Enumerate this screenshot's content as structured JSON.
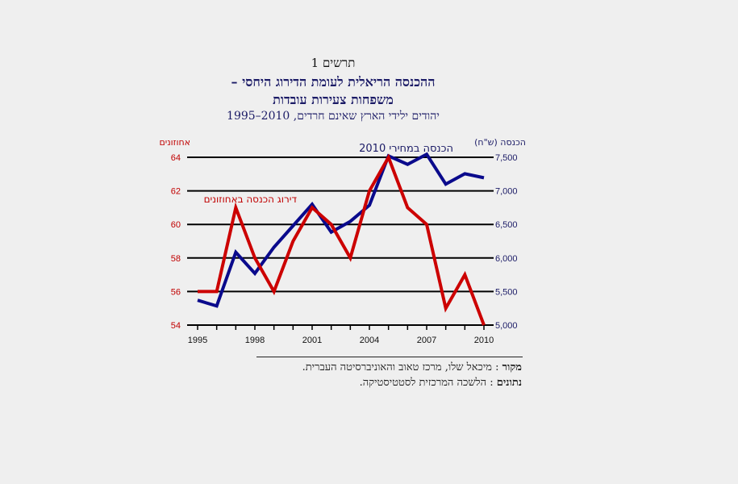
{
  "figure_number": "תרשים 1",
  "title_line1": "ההכנסה הריאלית לעומת הדירוג היחסי –",
  "title_line2": "משפחות  צעירות עובדות",
  "subtitle": "יהודים ילידי הארץ שאינם חרדים, 2010–1995",
  "chart_data": {
    "type": "line",
    "x": [
      1995,
      1996,
      1997,
      1998,
      1999,
      2000,
      2001,
      2002,
      2003,
      2004,
      2005,
      2006,
      2007,
      2008,
      2009,
      2010
    ],
    "x_tick_labels": [
      "1995",
      "1998",
      "2001",
      "2004",
      "2007",
      "2010"
    ],
    "left_axis": {
      "label": "אחוזונים",
      "ylim": [
        54,
        64
      ],
      "ticks": [
        "54",
        "56",
        "58",
        "60",
        "62",
        "64"
      ]
    },
    "right_axis": {
      "label": "הכנסה (ש\"ח)",
      "ylim": [
        5000,
        7500
      ],
      "ticks": [
        "5,000",
        "5,500",
        "6,000",
        "6,500",
        "7,000",
        "7,500"
      ]
    },
    "grid": true,
    "series": [
      {
        "name": "דירוג הכנסה באחוזונים",
        "axis": "left",
        "color": "#cc0000",
        "values": [
          56,
          56,
          61,
          58,
          56,
          59,
          61,
          60,
          58,
          62,
          64,
          61,
          60,
          55,
          57,
          54
        ]
      },
      {
        "name": "הכנסה במחירי 2010",
        "axis": "right",
        "color": "#0a0a8c",
        "values": [
          5370,
          5285,
          6085,
          5770,
          6160,
          6480,
          6800,
          6385,
          6545,
          6785,
          7520,
          7395,
          7545,
          7100,
          7255,
          7195
        ]
      }
    ]
  },
  "footer": {
    "source_label": "מקור",
    "source_text": " : מיכאל שלו, מרכז טאוב והאוניברסיטה העברית.",
    "data_label": "נתונים",
    "data_text": " : הלשכה המרכזית לסטטיסטיקה."
  }
}
